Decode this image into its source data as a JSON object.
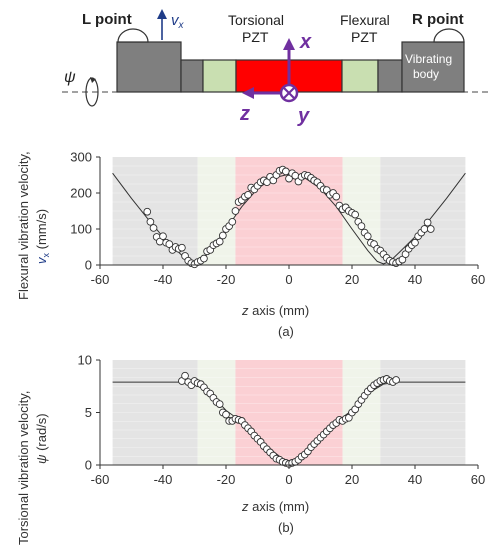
{
  "schematic": {
    "l_point": "L point",
    "r_point": "R point",
    "vx": "v",
    "vx_sub": "x",
    "psi": "ψ",
    "torsional_pzt": [
      "Torsional",
      "PZT"
    ],
    "flexural_pzt": [
      "Flexural",
      "PZT"
    ],
    "vibrating_body": [
      "Vibrating",
      "body"
    ],
    "axis_x": "x",
    "axis_y": "y",
    "axis_z": "z"
  },
  "panel_a": {
    "caption": "(a)",
    "ylabel_line1": "Flexural vibration velocity,",
    "ylabel_line2_sym": "v",
    "ylabel_line2_sub": "x",
    "ylabel_line2_unit": " (mm/s)",
    "xlabel_sym": "z",
    "xlabel_rest": " axis (mm)"
  },
  "panel_b": {
    "caption": "(b)",
    "ylabel_line1": "Torsional vibration velocity,",
    "ylabel_line2_sym": "ψ",
    "ylabel_line2_unit": " (rad/s)",
    "xlabel_sym": "z",
    "xlabel_rest": " axis (mm)"
  },
  "colors": {
    "gray_zone": "#e4e4e4",
    "green_zone": "#f0f4ea",
    "red_zone": "#fbd0d4",
    "pzt_red": "#ff0000",
    "pzt_green": "#c9dfb1",
    "body_gray": "#7f7f7f",
    "axis_purple": "#7030a0",
    "vx_blue": "#1f3c88"
  },
  "chart_data": [
    {
      "type": "scatter",
      "panel": "a",
      "xlim": [
        -60,
        60
      ],
      "ylim": [
        0,
        300
      ],
      "xticks": [
        -60,
        -40,
        -20,
        0,
        20,
        40,
        60
      ],
      "yticks": [
        0,
        100,
        200,
        300
      ],
      "regions_mm": [
        {
          "zone": "gray",
          "from": -56,
          "to": -29
        },
        {
          "zone": "green",
          "from": -29,
          "to": -17
        },
        {
          "zone": "red",
          "from": -17,
          "to": 17
        },
        {
          "zone": "green",
          "from": 17,
          "to": 29
        },
        {
          "zone": "gray",
          "from": 29,
          "to": 56
        }
      ],
      "measured": {
        "x": [
          -45,
          -44,
          -43,
          -42,
          -41,
          -40,
          -39,
          -38,
          -37,
          -36,
          -35,
          -34,
          -33,
          -32,
          -31,
          -30,
          -29,
          -28,
          -27,
          -26,
          -25,
          -24,
          -23,
          -22,
          -21,
          -20,
          -19,
          -18,
          -17,
          -16,
          -15,
          -14,
          -13,
          -12,
          -11,
          -10,
          -9,
          -8,
          -7,
          -6,
          -5,
          -4,
          -3,
          -2,
          -1,
          0,
          1,
          2,
          3,
          4,
          5,
          6,
          7,
          8,
          9,
          10,
          11,
          12,
          13,
          14,
          15,
          16,
          17,
          18,
          19,
          20,
          21,
          22,
          23,
          24,
          25,
          26,
          27,
          28,
          29,
          30,
          31,
          32,
          33,
          34,
          35,
          36,
          37,
          38,
          39,
          40,
          41,
          42,
          43,
          44,
          45
        ],
        "y": [
          148,
          120,
          103,
          78,
          65,
          80,
          62,
          58,
          42,
          50,
          45,
          48,
          25,
          12,
          5,
          2,
          8,
          12,
          18,
          38,
          42,
          55,
          60,
          65,
          82,
          100,
          108,
          120,
          150,
          175,
          180,
          190,
          195,
          215,
          210,
          220,
          230,
          235,
          230,
          245,
          235,
          250,
          262,
          265,
          260,
          240,
          255,
          248,
          232,
          245,
          250,
          248,
          242,
          235,
          230,
          220,
          210,
          208,
          195,
          200,
          190,
          165,
          155,
          160,
          150,
          145,
          140,
          120,
          108,
          90,
          80,
          62,
          58,
          45,
          40,
          30,
          20,
          12,
          8,
          5,
          10,
          15,
          30,
          45,
          55,
          62,
          80,
          90,
          100,
          118,
          100
        ]
      },
      "fit": {
        "x": [
          -56,
          -50,
          -45,
          -40,
          -35,
          -32,
          -30,
          -28,
          -25,
          -20,
          -15,
          -10,
          -5,
          0,
          5,
          10,
          15,
          20,
          25,
          28,
          30,
          32,
          35,
          40,
          45,
          50,
          56
        ],
        "y": [
          255,
          185,
          130,
          78,
          35,
          10,
          3,
          10,
          40,
          100,
          162,
          212,
          242,
          252,
          242,
          212,
          162,
          100,
          40,
          10,
          3,
          10,
          35,
          78,
          130,
          185,
          255
        ]
      }
    },
    {
      "type": "scatter",
      "panel": "b",
      "xlim": [
        -60,
        60
      ],
      "ylim": [
        0,
        10
      ],
      "xticks": [
        -60,
        -40,
        -20,
        0,
        20,
        40,
        60
      ],
      "yticks": [
        0,
        5,
        10
      ],
      "regions_mm": [
        {
          "zone": "gray",
          "from": -56,
          "to": -29
        },
        {
          "zone": "green",
          "from": -29,
          "to": -17
        },
        {
          "zone": "red",
          "from": -17,
          "to": 17
        },
        {
          "zone": "green",
          "from": 17,
          "to": 29
        },
        {
          "zone": "gray",
          "from": 29,
          "to": 56
        }
      ],
      "measured": {
        "x": [
          -34,
          -33,
          -32,
          -31,
          -30,
          -29,
          -28,
          -27,
          -26,
          -25,
          -24,
          -23,
          -22,
          -21,
          -20,
          -19,
          -18,
          -17,
          -16,
          -15,
          -14,
          -13,
          -12,
          -11,
          -10,
          -9,
          -8,
          -7,
          -6,
          -5,
          -4,
          -3,
          -2,
          -1,
          0,
          1,
          2,
          3,
          4,
          5,
          6,
          7,
          8,
          9,
          10,
          11,
          12,
          13,
          14,
          15,
          16,
          17,
          18,
          19,
          20,
          21,
          22,
          23,
          24,
          25,
          26,
          27,
          28,
          29,
          30,
          31,
          32,
          33,
          34
        ],
        "y": [
          8.0,
          8.5,
          7.9,
          7.6,
          8.0,
          7.8,
          7.7,
          7.4,
          7.0,
          6.8,
          6.4,
          6.0,
          5.8,
          5.0,
          4.8,
          4.2,
          4.2,
          4.4,
          4.3,
          4.2,
          3.8,
          3.5,
          3.2,
          2.8,
          2.5,
          2.2,
          1.8,
          1.5,
          1.2,
          0.9,
          0.6,
          0.5,
          0.3,
          0.2,
          0.1,
          0.2,
          0.3,
          0.5,
          0.8,
          1.0,
          1.3,
          1.7,
          2.0,
          2.3,
          2.6,
          2.9,
          3.2,
          3.5,
          3.8,
          4.0,
          4.3,
          4.2,
          4.4,
          4.5,
          5.0,
          5.3,
          5.8,
          6.2,
          6.6,
          7.0,
          7.3,
          7.6,
          7.8,
          8.0,
          8.1,
          8.2,
          8.0,
          7.9,
          8.1
        ]
      },
      "fit": {
        "x": [
          -56,
          -40,
          -34,
          -30,
          -25,
          -20,
          -15,
          -10,
          -5,
          0,
          5,
          10,
          15,
          20,
          25,
          30,
          34,
          40,
          56
        ],
        "y": [
          7.9,
          7.9,
          7.9,
          7.7,
          6.8,
          5.2,
          4.1,
          2.7,
          1.3,
          0.1,
          1.3,
          2.7,
          4.1,
          5.2,
          6.8,
          7.7,
          7.9,
          7.9,
          7.9
        ]
      }
    }
  ]
}
